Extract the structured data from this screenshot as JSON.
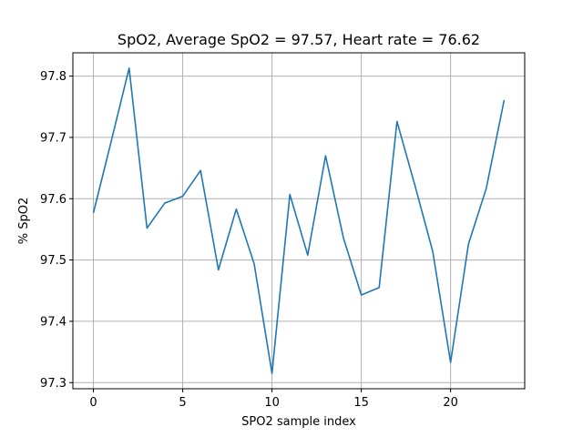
{
  "chart_data": {
    "type": "line",
    "title": "SpO2, Average SpO2 = 97.57, Heart rate = 76.62",
    "xlabel": "SPO2 sample index",
    "ylabel": "% SpO2",
    "x": [
      0,
      1,
      2,
      3,
      4,
      5,
      6,
      7,
      8,
      9,
      10,
      11,
      12,
      13,
      14,
      15,
      16,
      17,
      18,
      19,
      20,
      21,
      22,
      23
    ],
    "series": [
      {
        "values": [
          97.577,
          97.694,
          97.813,
          97.552,
          97.593,
          97.604,
          97.646,
          97.484,
          97.583,
          97.494,
          97.315,
          97.607,
          97.508,
          97.67,
          97.536,
          97.443,
          97.455,
          97.726,
          97.622,
          97.514,
          97.333,
          97.526,
          97.617,
          97.761
        ]
      }
    ],
    "xlim": [
      -1.15,
      24.15
    ],
    "ylim": [
      97.29,
      97.838
    ],
    "x_ticks": [
      "0",
      "5",
      "10",
      "15",
      "20"
    ],
    "y_ticks": [
      "97.3",
      "97.4",
      "97.5",
      "97.6",
      "97.7",
      "97.8"
    ],
    "x_tick_values": [
      0,
      5,
      10,
      15,
      20
    ],
    "y_tick_values": [
      97.3,
      97.4,
      97.5,
      97.6,
      97.7,
      97.8
    ],
    "grid": true,
    "line_color": "#1f77b4",
    "grid_color": "#b0b0b0"
  }
}
